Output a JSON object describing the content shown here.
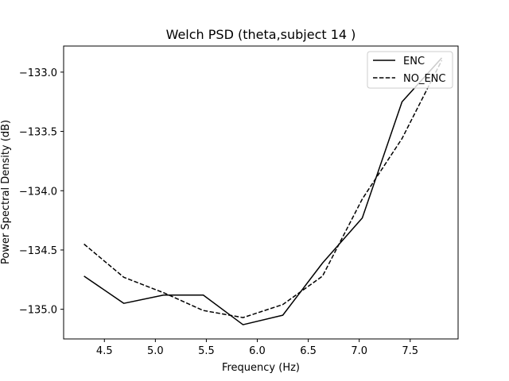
{
  "chart_data": {
    "type": "line",
    "title": "Welch PSD (theta,subject 14 )",
    "xlabel": "Frequency (Hz)",
    "ylabel": "Power Spectral Density (dB)",
    "xlim": [
      4.1,
      7.97
    ],
    "ylim": [
      -135.25,
      -132.78
    ],
    "xticks": [
      4.5,
      5.0,
      5.5,
      6.0,
      6.5,
      7.0,
      7.5
    ],
    "xtick_labels": [
      "4.5",
      "5.0",
      "5.5",
      "6.0",
      "6.5",
      "7.0",
      "7.5"
    ],
    "yticks": [
      -133.0,
      -133.5,
      -134.0,
      -134.5,
      -135.0
    ],
    "ytick_labels": [
      "−133.0",
      "−133.5",
      "−134.0",
      "−134.5",
      "−135.0"
    ],
    "grid": false,
    "legend_position": "top-right",
    "series": [
      {
        "name": "ENC",
        "style": "solid",
        "color": "#000000",
        "x": [
          4.3,
          4.69,
          5.08,
          5.47,
          5.86,
          6.25,
          6.64,
          7.03,
          7.42,
          7.81
        ],
        "y": [
          -134.72,
          -134.95,
          -134.88,
          -134.88,
          -135.13,
          -135.05,
          -134.61,
          -134.23,
          -133.25,
          -132.88
        ]
      },
      {
        "name": "NO_ENC",
        "style": "dashed",
        "color": "#000000",
        "x": [
          4.3,
          4.69,
          5.08,
          5.47,
          5.86,
          6.25,
          6.64,
          7.03,
          7.42,
          7.81
        ],
        "y": [
          -134.45,
          -134.73,
          -134.86,
          -135.01,
          -135.07,
          -134.96,
          -134.72,
          -134.07,
          -133.56,
          -132.9
        ]
      }
    ]
  }
}
